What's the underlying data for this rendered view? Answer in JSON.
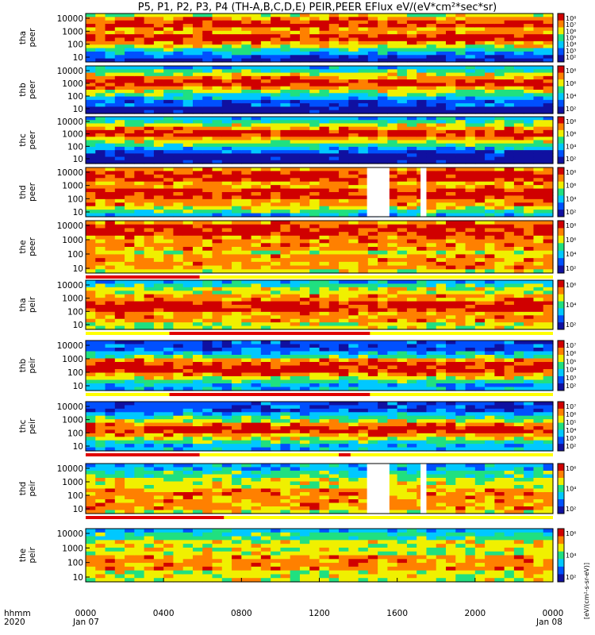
{
  "chart_data": {
    "type": "heatmap",
    "title": "P5, P1, P2, P3, P4 (TH-A,B,C,D,E) PEIR,PEER EFlux eV/(eV*cm²*sec*sr)",
    "x_ticks": [
      "0000",
      "0400",
      "0800",
      "1200",
      "1600",
      "2000",
      "0000"
    ],
    "x_dates": [
      "Jan 07",
      "Jan 08"
    ],
    "x_corner_labels": [
      "hhmm",
      "2020"
    ],
    "colorbar_label": "[eV/(cm²-s-sr-eV)]",
    "colorbar_colors": [
      "#1010a0",
      "#0050ff",
      "#00c8ff",
      "#20e080",
      "#f0f000",
      "#ff8000",
      "#d00000"
    ],
    "panels": [
      {
        "label": [
          "tha",
          "peer"
        ],
        "yticks": [
          "10000",
          "1000",
          "100",
          "10"
        ],
        "cbar": [
          "10⁸",
          "10⁷",
          "10⁶",
          "10⁵",
          "10⁴",
          "10³",
          "10²"
        ],
        "profile": [
          0,
          1,
          2,
          3,
          4,
          5,
          6,
          6,
          5,
          5,
          6,
          6,
          5,
          4
        ],
        "gaps": []
      },
      {
        "label": [
          "thb",
          "peer"
        ],
        "yticks": [
          "10000",
          "1000",
          "100",
          "10"
        ],
        "cbar": [
          "10⁸",
          "10⁶",
          "10⁴",
          "10²"
        ],
        "profile": [
          0,
          0,
          1,
          1,
          2,
          3,
          4,
          5,
          6,
          6,
          5,
          4,
          3,
          2
        ],
        "gaps": []
      },
      {
        "label": [
          "thc",
          "peer"
        ],
        "yticks": [
          "10000",
          "1000",
          "100",
          "10"
        ],
        "cbar": [
          "10⁸",
          "10⁶",
          "10⁴",
          "10²"
        ],
        "profile": [
          0,
          0,
          0,
          1,
          2,
          3,
          4,
          5,
          6,
          6,
          5,
          4,
          3,
          2
        ],
        "gaps": []
      },
      {
        "label": [
          "thd",
          "peer"
        ],
        "yticks": [
          "10000",
          "1000",
          "100",
          "10"
        ],
        "cbar": [
          "10⁸",
          "10⁶",
          "10⁴",
          "10²"
        ],
        "profile": [
          2,
          3,
          4,
          5,
          5,
          6,
          6,
          6,
          5,
          5,
          6,
          6,
          6,
          5
        ],
        "gaps": [
          [
            14.45,
            15.6
          ],
          [
            17.2,
            17.5
          ]
        ]
      },
      {
        "label": [
          "the",
          "peer"
        ],
        "yticks": [
          "10000",
          "1000",
          "100",
          "10"
        ],
        "cbar": [
          "10⁸",
          "10⁶",
          "10⁴",
          "10²"
        ],
        "profile": [
          4,
          5,
          5,
          5,
          5,
          4,
          5,
          5,
          5,
          5,
          6,
          6,
          6,
          5
        ],
        "gaps": []
      },
      {
        "label": [
          "tha",
          "peir"
        ],
        "yticks": [
          "10000",
          "1000",
          "100",
          "10"
        ],
        "cbar": [
          "10⁶",
          "10⁴",
          "10²"
        ],
        "profile": [
          4,
          4,
          5,
          5,
          5,
          6,
          6,
          6,
          5,
          5,
          4,
          4,
          3,
          2
        ],
        "gaps": []
      },
      {
        "label": [
          "thb",
          "peir"
        ],
        "yticks": [
          "10000",
          "1000",
          "100",
          "10"
        ],
        "cbar": [
          "10⁷",
          "10⁶",
          "10⁵",
          "10⁴",
          "10³",
          "10²"
        ],
        "profile": [
          2,
          2,
          3,
          4,
          5,
          6,
          6,
          6,
          5,
          3,
          2,
          1,
          1,
          1
        ],
        "gaps": []
      },
      {
        "label": [
          "thc",
          "peir"
        ],
        "yticks": [
          "10000",
          "1000",
          "100",
          "10"
        ],
        "cbar": [
          "10⁷",
          "10⁶",
          "10⁵",
          "10⁴",
          "10³",
          "10²"
        ],
        "profile": [
          2,
          2,
          3,
          4,
          5,
          6,
          6,
          5,
          4,
          3,
          2,
          1,
          1,
          1
        ],
        "gaps": []
      },
      {
        "label": [
          "thd",
          "peir"
        ],
        "yticks": [
          "10000",
          "1000",
          "100",
          "10"
        ],
        "cbar": [
          "10⁶",
          "10⁴",
          "10²"
        ],
        "profile": [
          4,
          5,
          5,
          5,
          5,
          5,
          5,
          4,
          4,
          4,
          3,
          3,
          2,
          2
        ],
        "gaps": [
          [
            14.45,
            15.6
          ],
          [
            17.2,
            17.5
          ]
        ]
      },
      {
        "label": [
          "the",
          "peir"
        ],
        "yticks": [
          "10000",
          "1000",
          "100",
          "10"
        ],
        "cbar": [
          "10⁶",
          "10⁴",
          "10²"
        ],
        "profile": [
          4,
          4,
          4,
          5,
          5,
          5,
          5,
          4,
          4,
          4,
          4,
          3,
          3,
          2
        ],
        "gaps": []
      }
    ],
    "bars": [
      {
        "after_panel": 4,
        "segments": [
          [
            0.0,
            5.85
          ]
        ]
      },
      {
        "after_panel": 5,
        "segments": [
          [
            4.3,
            14.6
          ]
        ]
      },
      {
        "after_panel": 6,
        "segments": [
          [
            4.3,
            14.6
          ]
        ]
      },
      {
        "after_panel": 7,
        "segments": [
          [
            0.0,
            5.85
          ],
          [
            13.0,
            13.6
          ]
        ]
      },
      {
        "after_panel": 8,
        "segments": [
          [
            0.0,
            7.1
          ]
        ]
      }
    ]
  }
}
